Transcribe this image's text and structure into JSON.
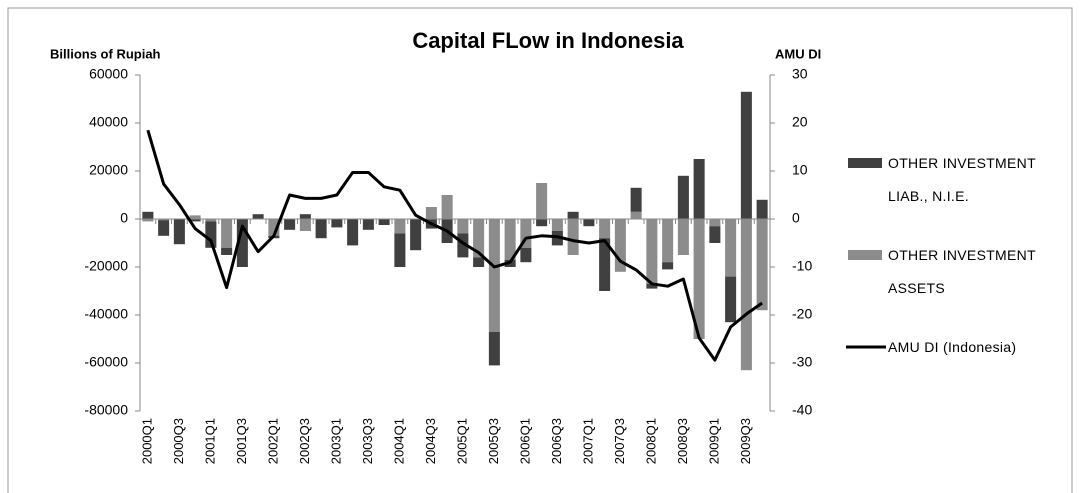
{
  "chart_data": {
    "type": "bar",
    "stacked": true,
    "title": "Capital FLow in Indonesia",
    "y_label": "Billions of Rupiah",
    "y2_label": "AMU DI",
    "categories": [
      "2000Q1",
      null,
      "2000Q3",
      null,
      "2001Q1",
      null,
      "2001Q3",
      null,
      "2002Q1",
      null,
      "2002Q3",
      null,
      "2003Q1",
      null,
      "2003Q3",
      null,
      "2004Q1",
      null,
      "2004Q3",
      null,
      "2005Q1",
      null,
      "2005Q3",
      null,
      "2006Q1",
      null,
      "2006Q3",
      null,
      "2007Q1",
      null,
      "2007Q3",
      null,
      "2008Q1",
      null,
      "2008Q3",
      null,
      "2009Q1",
      null,
      "2009Q3",
      null
    ],
    "series": [
      {
        "name": "OTHER INVESTMENT LIAB., N.I.E.",
        "type": "bar",
        "color": "#404040",
        "values": [
          3000,
          -6500,
          -10500,
          -1000,
          -11000,
          -3000,
          -20000,
          2000,
          -1000,
          -4500,
          2000,
          -8000,
          -3500,
          -11000,
          -4500,
          -2500,
          -14000,
          -13000,
          -4000,
          -10000,
          -10000,
          -4000,
          -14000,
          -3000,
          -6000,
          -3000,
          -6000,
          3000,
          -3000,
          -22000,
          0,
          10000,
          -2000,
          -3000,
          18000,
          25000,
          -7000,
          -19000,
          53000,
          8000
        ]
      },
      {
        "name": "OTHER INVESTMENT ASSETS",
        "type": "bar",
        "color": "#8c8c8c",
        "values": [
          -1000,
          -500,
          0,
          1500,
          -1000,
          -12000,
          0,
          0,
          -7000,
          0,
          -5000,
          0,
          0,
          0,
          0,
          0,
          -6000,
          0,
          5000,
          10000,
          -6000,
          -16000,
          -47000,
          -17000,
          -12000,
          15000,
          -5000,
          -15000,
          0,
          -8000,
          -22000,
          3000,
          -27000,
          -18000,
          -15000,
          -50000,
          -3000,
          -24000,
          -63000,
          -38000
        ]
      },
      {
        "name": "AMU DI (Indonesia)",
        "type": "line",
        "axis": "y2",
        "color": "#000000",
        "values": [
          18.5,
          7.3,
          3,
          -2,
          -4.5,
          -14.3,
          -1.5,
          -6.8,
          -3.5,
          5,
          4.3,
          4.3,
          5,
          9.7,
          9.7,
          6.7,
          6,
          0.8,
          -1,
          -2.5,
          -5,
          -7,
          -10,
          -9,
          -4,
          -3.5,
          -3.7,
          -4.5,
          -5,
          -4.5,
          -8.8,
          -10.6,
          -13.5,
          -14,
          -12.5,
          -24.8,
          -29.4,
          -22.5,
          -19.8,
          -17.5
        ]
      }
    ],
    "ylim": [
      -80000,
      60000
    ],
    "yticks": [
      -80000,
      -60000,
      -40000,
      -20000,
      0,
      20000,
      40000,
      60000
    ],
    "y2lim": [
      -40,
      30
    ],
    "y2ticks": [
      -40,
      -30,
      -20,
      -10,
      0,
      10,
      20,
      30
    ],
    "grid": false,
    "legend": "right"
  }
}
